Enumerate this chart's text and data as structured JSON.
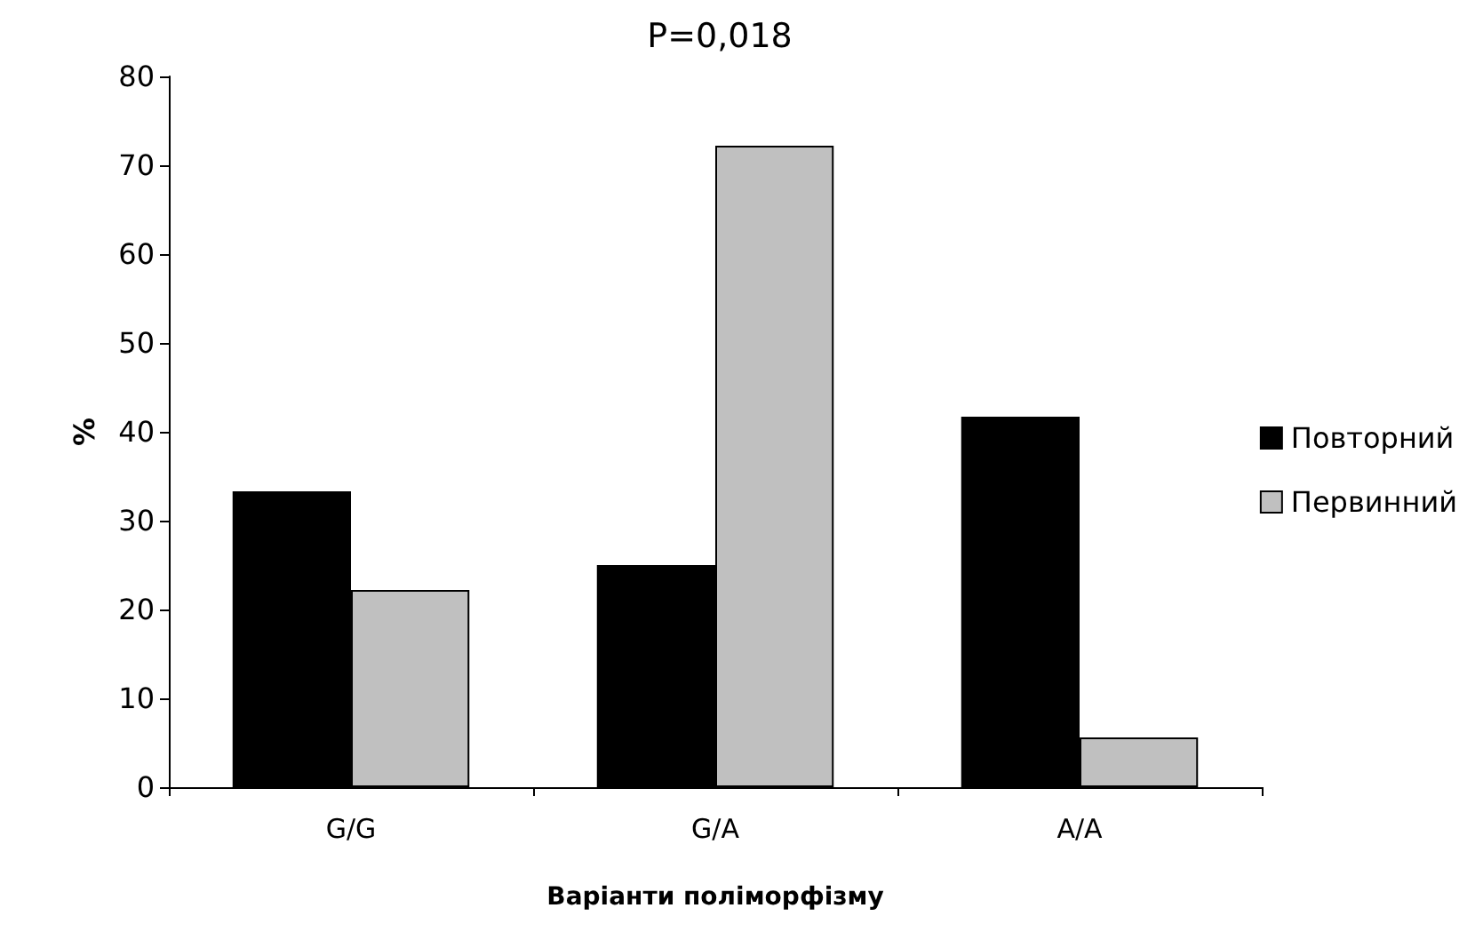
{
  "chart_data": {
    "type": "bar",
    "title": "P=0,018",
    "xlabel": "Варіанти поліморфізму",
    "ylabel": "%",
    "categories": [
      "G/G",
      "G/A",
      "A/A"
    ],
    "series": [
      {
        "name": "Повторний",
        "color": "#000000",
        "values": [
          33.3,
          25.0,
          41.7
        ]
      },
      {
        "name": "Первинний",
        "color": "#c0c0c0",
        "values": [
          22.2,
          72.2,
          5.6
        ]
      }
    ],
    "ylim": [
      0,
      80
    ],
    "yticks": [
      0,
      10,
      20,
      30,
      40,
      50,
      60,
      70,
      80
    ],
    "grid": false,
    "legend": "right"
  }
}
